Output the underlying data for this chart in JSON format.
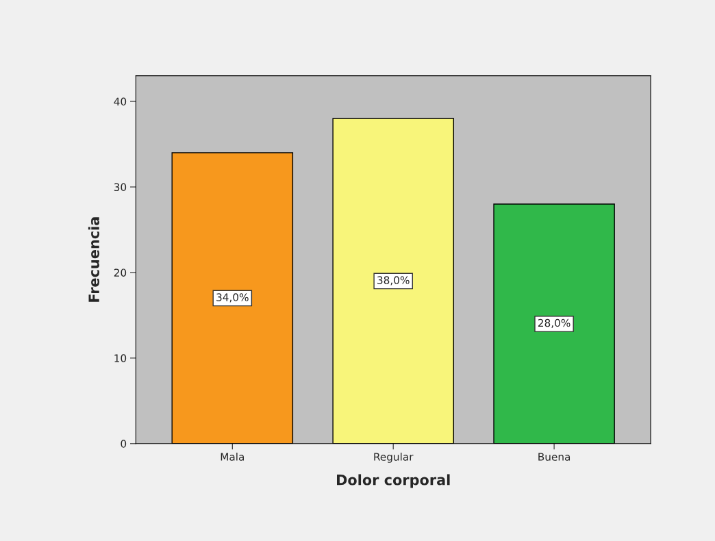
{
  "chart_data": {
    "type": "bar",
    "xlabel": "Dolor corporal",
    "ylabel": "Frecuencia",
    "categories": [
      "Mala",
      "Regular",
      "Buena"
    ],
    "values": [
      34,
      38,
      28
    ],
    "colors": [
      "#f7981d",
      "#f8f57a",
      "#30b84a"
    ],
    "value_labels": [
      "34,0%",
      "38,0%",
      "28,0%"
    ],
    "ylim": [
      0,
      43
    ],
    "yticks": [
      0,
      10,
      20,
      30,
      40
    ],
    "grid": false
  }
}
